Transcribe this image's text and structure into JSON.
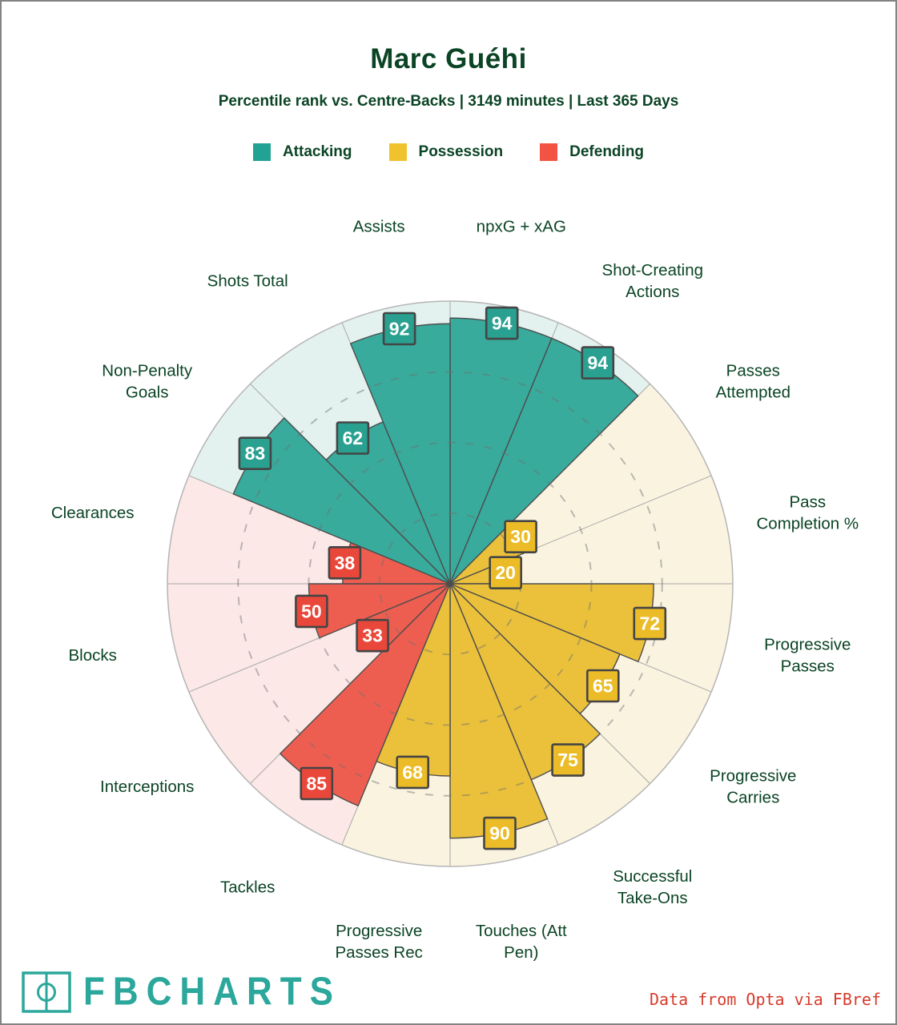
{
  "page": {
    "title": "Marc Guéhi",
    "subtitle": "Percentile rank vs. Centre-Backs | 3149 minutes | Last 365 Days"
  },
  "legend": [
    {
      "label": "Attacking",
      "color": "#21A294"
    },
    {
      "label": "Possession",
      "color": "#F0C32E"
    },
    {
      "label": "Defending",
      "color": "#F25342"
    }
  ],
  "footer": {
    "brand": "FBCHARTS",
    "brand_color": "#2BA79B",
    "credit": "Data from Opta via FBref",
    "credit_color": "#D8392B"
  },
  "chart_data": {
    "type": "pizza-polar-bar",
    "title": "Percentile rank pizza chart",
    "max": 100,
    "ring_values": [
      25,
      50,
      75
    ],
    "start": "12 o'clock, clockwise",
    "groups": {
      "attacking": {
        "color": "#38AB9C",
        "badge": "#2AA090",
        "bg": "#E3F1EF"
      },
      "possession": {
        "color": "#EBC13B",
        "badge": "#EBBC27",
        "bg": "#FAF3E0"
      },
      "defending": {
        "color": "#EE5E50",
        "badge": "#E9473A",
        "bg": "#FBE8E7"
      }
    },
    "slices": [
      {
        "label": "npxG + xAG",
        "lines": [
          "npxG + xAG"
        ],
        "value": 94,
        "group": "attacking"
      },
      {
        "label": "Shot-Creating Actions",
        "lines": [
          "Shot-Creating",
          "Actions"
        ],
        "value": 94,
        "group": "attacking"
      },
      {
        "label": "Passes Attempted",
        "lines": [
          "Passes",
          "Attempted"
        ],
        "value": 30,
        "group": "possession"
      },
      {
        "label": "Pass Completion %",
        "lines": [
          "Pass",
          "Completion %"
        ],
        "value": 20,
        "group": "possession"
      },
      {
        "label": "Progressive Passes",
        "lines": [
          "Progressive",
          "Passes"
        ],
        "value": 72,
        "group": "possession"
      },
      {
        "label": "Progressive Carries",
        "lines": [
          "Progressive",
          "Carries"
        ],
        "value": 65,
        "group": "possession"
      },
      {
        "label": "Successful Take-Ons",
        "lines": [
          "Successful",
          "Take-Ons"
        ],
        "value": 75,
        "group": "possession"
      },
      {
        "label": "Touches (Att Pen)",
        "lines": [
          "Touches (Att",
          "Pen)"
        ],
        "value": 90,
        "group": "possession"
      },
      {
        "label": "Progressive Passes Rec",
        "lines": [
          "Progressive",
          "Passes Rec"
        ],
        "value": 68,
        "group": "possession"
      },
      {
        "label": "Tackles",
        "lines": [
          "Tackles"
        ],
        "value": 85,
        "group": "defending"
      },
      {
        "label": "Interceptions",
        "lines": [
          "Interceptions"
        ],
        "value": 33,
        "group": "defending"
      },
      {
        "label": "Blocks",
        "lines": [
          "Blocks"
        ],
        "value": 50,
        "group": "defending"
      },
      {
        "label": "Clearances",
        "lines": [
          "Clearances"
        ],
        "value": 38,
        "group": "defending"
      },
      {
        "label": "Non-Penalty Goals",
        "lines": [
          "Non-Penalty",
          "Goals"
        ],
        "value": 83,
        "group": "attacking"
      },
      {
        "label": "Shots Total",
        "lines": [
          "Shots Total"
        ],
        "value": 62,
        "group": "attacking"
      },
      {
        "label": "Assists",
        "lines": [
          "Assists"
        ],
        "value": 92,
        "group": "attacking"
      }
    ],
    "label_color": "#0B4425"
  }
}
